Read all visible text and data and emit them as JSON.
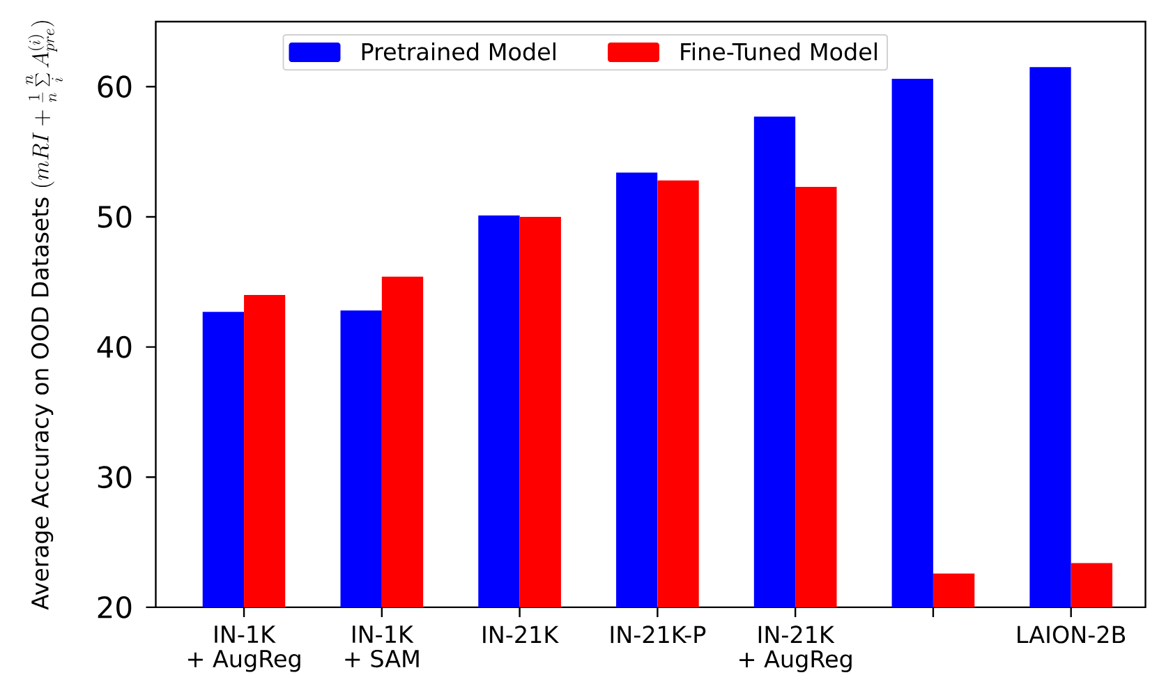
{
  "chart_data": {
    "type": "bar",
    "ylabel": "\\mbox{Average Accuracy on OOD Datasets }(mRI + \\frac{1}{n}\\sum\\limits_{i}^{n} A_{pre}^{(i)})",
    "categories": [
      "IN-1K\n+ AugReg",
      "IN-1K\n+ SAM",
      "IN-21K",
      "IN-21K-P",
      "IN-21K\n+ AugReg",
      null,
      "LAION-2B"
    ],
    "series": [
      {
        "name": "Pretrained Model",
        "color": "#0000ff",
        "values": [
          42.7,
          42.8,
          50.1,
          53.4,
          57.7,
          60.6,
          61.5
        ]
      },
      {
        "name": "Fine-Tuned Model",
        "color": "#ff0000",
        "values": [
          44.0,
          45.4,
          50.0,
          52.8,
          52.3,
          22.6,
          23.4
        ]
      }
    ],
    "ylim": [
      20,
      65
    ],
    "yticks": [
      20,
      30,
      40,
      50,
      60
    ],
    "legend": "top"
  }
}
